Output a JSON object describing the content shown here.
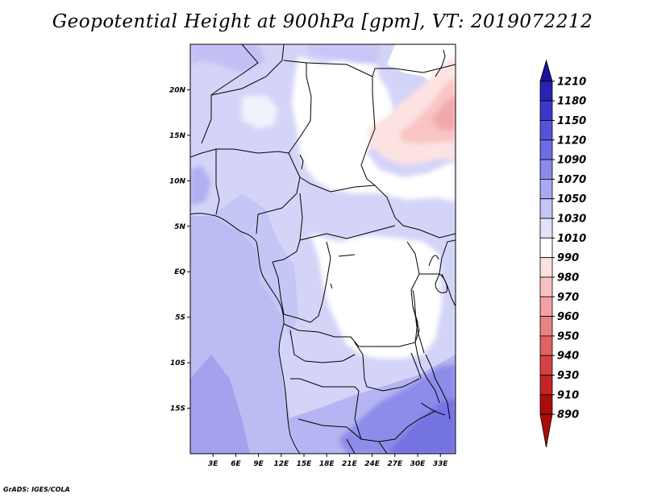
{
  "title": "Geopotential Height at 900hPa [gpm], VT: 2019072212",
  "credit": "GrADS: IGES/COLA",
  "map": {
    "lon_range": [
      0,
      35
    ],
    "lat_range": [
      -20,
      25
    ],
    "lon_ticks": [
      "3E",
      "6E",
      "9E",
      "12E",
      "15E",
      "18E",
      "21E",
      "24E",
      "27E",
      "30E",
      "33E"
    ],
    "lat_ticks": [
      "20N",
      "15N",
      "10N",
      "5N",
      "EQ",
      "5S",
      "10S",
      "15S"
    ]
  },
  "colorbar": {
    "labels": [
      "1210",
      "1180",
      "1150",
      "1120",
      "1090",
      "1070",
      "1050",
      "1030",
      "1010",
      "990",
      "980",
      "970",
      "960",
      "950",
      "940",
      "930",
      "910",
      "890"
    ],
    "colors": [
      "#1e1096",
      "#2a22b0",
      "#3c38c8",
      "#5552d8",
      "#6e6ce2",
      "#8c8aea",
      "#a9a8f0",
      "#c4c4f6",
      "#e2e2fb",
      "#ffffff",
      "#fde0e0",
      "#f8c2c2",
      "#f1a2a2",
      "#e98282",
      "#e06262",
      "#d44242",
      "#c42424",
      "#aa0c0c"
    ]
  }
}
